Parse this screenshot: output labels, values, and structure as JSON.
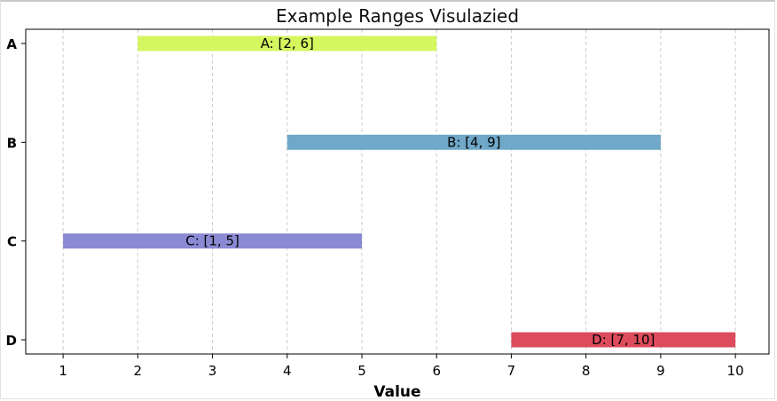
{
  "chart_data": {
    "type": "bar",
    "orientation": "horizontal-range",
    "title": "Example Ranges Visulazied",
    "xlabel": "Value",
    "ylabel": "",
    "xlim": [
      0.5,
      10.45
    ],
    "x_ticks": [
      1,
      2,
      3,
      4,
      5,
      6,
      7,
      8,
      9,
      10
    ],
    "grid": "x-dashed",
    "categories": [
      "A",
      "B",
      "C",
      "D"
    ],
    "ranges": [
      {
        "category": "A",
        "start": 2,
        "end": 6,
        "label": "A: [2, 6]",
        "color": "#d4f75f"
      },
      {
        "category": "B",
        "start": 4,
        "end": 9,
        "label": "B: [4, 9]",
        "color": "#6fa8c8"
      },
      {
        "category": "C",
        "start": 1,
        "end": 5,
        "label": "C: [1, 5]",
        "color": "#8a8ad4"
      },
      {
        "category": "D",
        "start": 7,
        "end": 10,
        "label": "D: [7, 10]",
        "color": "#dc4c5c"
      }
    ]
  }
}
